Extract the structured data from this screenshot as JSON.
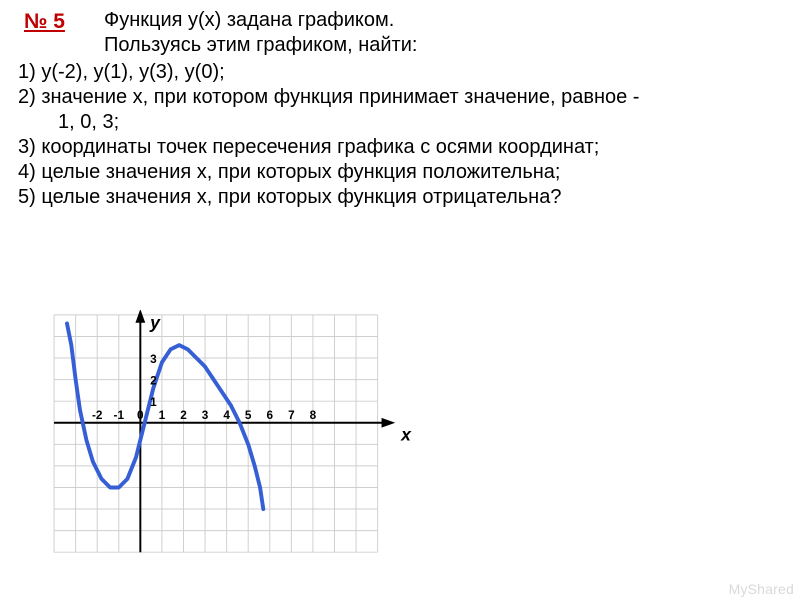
{
  "task_number": "№ 5",
  "intro_lines": [
    "Функция y(x) задана графиком.",
    "Пользуясь этим графиком, найти:"
  ],
  "items": {
    "i1": "1)  y(-2),  y(1),  y(3),  y(0);",
    "i2a": "2)  значение x, при котором функция принимает значение, равное  -",
    "i2b": "1,   0,   3;",
    "i3": "3)  координаты точек пересечения графика с осями координат;",
    "i4": "4)  целые значения x, при которых функция положительна;",
    "i5": "5)  целые значения x, при которых функция отрицательна?"
  },
  "chart": {
    "type": "line",
    "cell": 22,
    "cols": 15,
    "rows": 11,
    "origin_col": 4,
    "origin_row": 5,
    "grid_color": "#cfcfcf",
    "axis_color": "#000000",
    "curve_color": "#365fd6",
    "curve_width": 4,
    "x_ticks": [
      {
        "v": -2,
        "label": "-2"
      },
      {
        "v": -1,
        "label": "-1"
      },
      {
        "v": 0,
        "label": "0"
      },
      {
        "v": 1,
        "label": "1"
      },
      {
        "v": 2,
        "label": "2"
      },
      {
        "v": 3,
        "label": "3"
      },
      {
        "v": 4,
        "label": "4"
      },
      {
        "v": 5,
        "label": "5"
      },
      {
        "v": 6,
        "label": "6"
      },
      {
        "v": 7,
        "label": "7"
      },
      {
        "v": 8,
        "label": "8"
      }
    ],
    "y_ticks": [
      {
        "v": 1,
        "label": "1"
      },
      {
        "v": 2,
        "label": "2"
      },
      {
        "v": 3,
        "label": "3"
      }
    ],
    "x_axis_label": "x",
    "y_axis_label": "y",
    "curve_points": [
      {
        "x": -3.4,
        "y": 4.6
      },
      {
        "x": -3.2,
        "y": 3.6
      },
      {
        "x": -3.0,
        "y": 2.0
      },
      {
        "x": -2.8,
        "y": 0.6
      },
      {
        "x": -2.5,
        "y": -0.8
      },
      {
        "x": -2.2,
        "y": -1.8
      },
      {
        "x": -1.8,
        "y": -2.6
      },
      {
        "x": -1.4,
        "y": -3.0
      },
      {
        "x": -1.0,
        "y": -3.0
      },
      {
        "x": -0.6,
        "y": -2.6
      },
      {
        "x": -0.2,
        "y": -1.6
      },
      {
        "x": 0.2,
        "y": 0.0
      },
      {
        "x": 0.6,
        "y": 1.6
      },
      {
        "x": 1.0,
        "y": 2.8
      },
      {
        "x": 1.4,
        "y": 3.4
      },
      {
        "x": 1.8,
        "y": 3.6
      },
      {
        "x": 2.2,
        "y": 3.4
      },
      {
        "x": 2.6,
        "y": 3.0
      },
      {
        "x": 3.0,
        "y": 2.6
      },
      {
        "x": 3.4,
        "y": 2.0
      },
      {
        "x": 3.8,
        "y": 1.4
      },
      {
        "x": 4.2,
        "y": 0.8
      },
      {
        "x": 4.6,
        "y": 0.0
      },
      {
        "x": 5.0,
        "y": -1.0
      },
      {
        "x": 5.3,
        "y": -2.0
      },
      {
        "x": 5.55,
        "y": -3.0
      },
      {
        "x": 5.7,
        "y": -4.0
      }
    ]
  },
  "watermark": "MyShared"
}
